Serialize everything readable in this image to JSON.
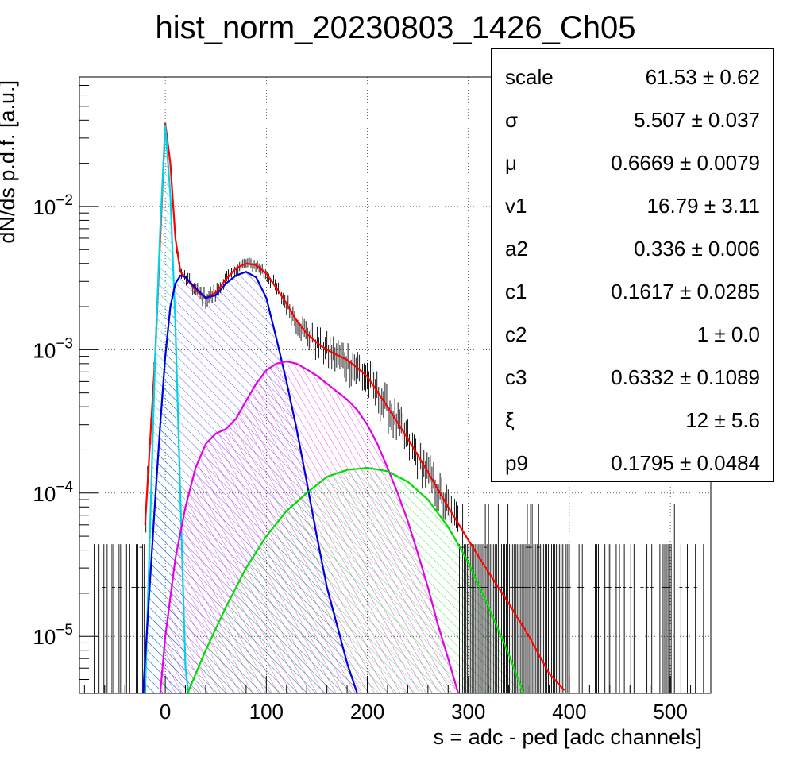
{
  "chart_data": {
    "type": "line",
    "title": "hist_norm_20230803_1426_Ch05",
    "xlabel": "s = adc - ped [adc channels]",
    "ylabel": "dN/ds p.d.f. [a.u.]",
    "xlim": [
      -85,
      540
    ],
    "ylim": [
      4e-06,
      0.08
    ],
    "yscale": "log",
    "grid": true,
    "x_ticks": [
      "0",
      "100",
      "200",
      "300",
      "400",
      "500"
    ],
    "y_ticks": [
      {
        "base": "10",
        "exp": "−5"
      },
      {
        "base": "10",
        "exp": "−4"
      },
      {
        "base": "10",
        "exp": "−3"
      },
      {
        "base": "10",
        "exp": "−2"
      }
    ],
    "series": [
      {
        "color": "#ff0000",
        "x": [
          -20,
          -10,
          -5,
          0,
          5,
          10,
          15,
          20,
          30,
          40,
          50,
          60,
          70,
          80,
          90,
          100,
          110,
          120,
          130,
          140,
          150,
          160,
          170,
          180,
          190,
          200,
          220,
          240,
          260,
          280,
          300,
          320,
          340,
          360,
          380,
          395
        ],
        "y": [
          6e-05,
          0.0009,
          0.006,
          0.038,
          0.02,
          0.006,
          0.0035,
          0.0032,
          0.0026,
          0.0023,
          0.0025,
          0.0031,
          0.0037,
          0.004,
          0.0039,
          0.0034,
          0.0027,
          0.0021,
          0.0016,
          0.0013,
          0.00112,
          0.001,
          0.00092,
          0.00085,
          0.00075,
          0.00065,
          0.0004,
          0.00024,
          0.00014,
          8e-05,
          4.7e-05,
          2.8e-05,
          1.7e-05,
          1e-05,
          5.5e-06,
          4.2e-06
        ]
      },
      {
        "color": "#00d2e6",
        "x": [
          -20,
          -15,
          -10,
          -5,
          0,
          5,
          10,
          15,
          20,
          23
        ],
        "y": [
          4e-06,
          6e-05,
          0.0009,
          0.007,
          0.037,
          0.012,
          0.0015,
          9e-05,
          6e-06,
          4e-06
        ]
      },
      {
        "color": "#0000dd",
        "x": [
          -22,
          -15,
          -10,
          -5,
          0,
          5,
          10,
          15,
          20,
          30,
          40,
          50,
          60,
          70,
          80,
          90,
          100,
          110,
          120,
          130,
          140,
          150,
          160,
          170,
          180,
          190
        ],
        "y": [
          4e-06,
          2.5e-05,
          9e-05,
          0.0003,
          0.0009,
          0.002,
          0.0029,
          0.0033,
          0.0032,
          0.0027,
          0.0023,
          0.0024,
          0.0029,
          0.0033,
          0.0035,
          0.0032,
          0.0023,
          0.0012,
          0.0006,
          0.00028,
          0.00012,
          5e-05,
          2.2e-05,
          1.2e-05,
          6.5e-06,
          4e-06
        ]
      },
      {
        "color": "#e600e6",
        "x": [
          -5,
          0,
          10,
          20,
          30,
          40,
          50,
          60,
          70,
          80,
          90,
          100,
          110,
          120,
          130,
          140,
          150,
          160,
          170,
          180,
          190,
          200,
          210,
          220,
          230,
          240,
          250,
          260,
          270,
          280,
          290
        ],
        "y": [
          4e-06,
          1e-05,
          3.5e-05,
          8e-05,
          0.00015,
          0.00022,
          0.00026,
          0.00028,
          0.00033,
          0.00044,
          0.00058,
          0.00072,
          0.0008,
          0.00083,
          0.0008,
          0.00073,
          0.00066,
          0.00058,
          0.00051,
          0.00045,
          0.00038,
          0.0003,
          0.00022,
          0.00015,
          0.0001,
          6.4e-05,
          3.8e-05,
          2.2e-05,
          1.2e-05,
          7e-06,
          4e-06
        ]
      },
      {
        "color": "#00dd00",
        "x": [
          22,
          40,
          60,
          80,
          100,
          120,
          140,
          160,
          180,
          200,
          220,
          240,
          260,
          280,
          300,
          320,
          340,
          355
        ],
        "y": [
          4e-06,
          8e-06,
          1.6e-05,
          3e-05,
          5e-05,
          7.5e-05,
          0.0001,
          0.00013,
          0.000145,
          0.00015,
          0.000142,
          0.00012,
          9e-05,
          5.8e-05,
          3.3e-05,
          1.6e-05,
          7.5e-06,
          4e-06
        ]
      }
    ]
  },
  "stats": {
    "rows": [
      {
        "name": "scale",
        "value": "61.53 ± 0.62"
      },
      {
        "name": "σ",
        "value": "5.507 ± 0.037"
      },
      {
        "name": "μ",
        "value": "0.6669 ± 0.0079"
      },
      {
        "name": "v1",
        "value": "16.79 ± 3.11"
      },
      {
        "name": "a2",
        "value": "0.336 ± 0.006"
      },
      {
        "name": "c1",
        "value": "0.1617 ± 0.0285"
      },
      {
        "name": "c2",
        "value": "1 ± 0.0"
      },
      {
        "name": "c3",
        "value": "0.6332 ± 0.1089"
      },
      {
        "name": "ξ",
        "value": "12 ± 5.6"
      },
      {
        "name": "p9",
        "value": "0.1795 ± 0.0484"
      }
    ]
  }
}
